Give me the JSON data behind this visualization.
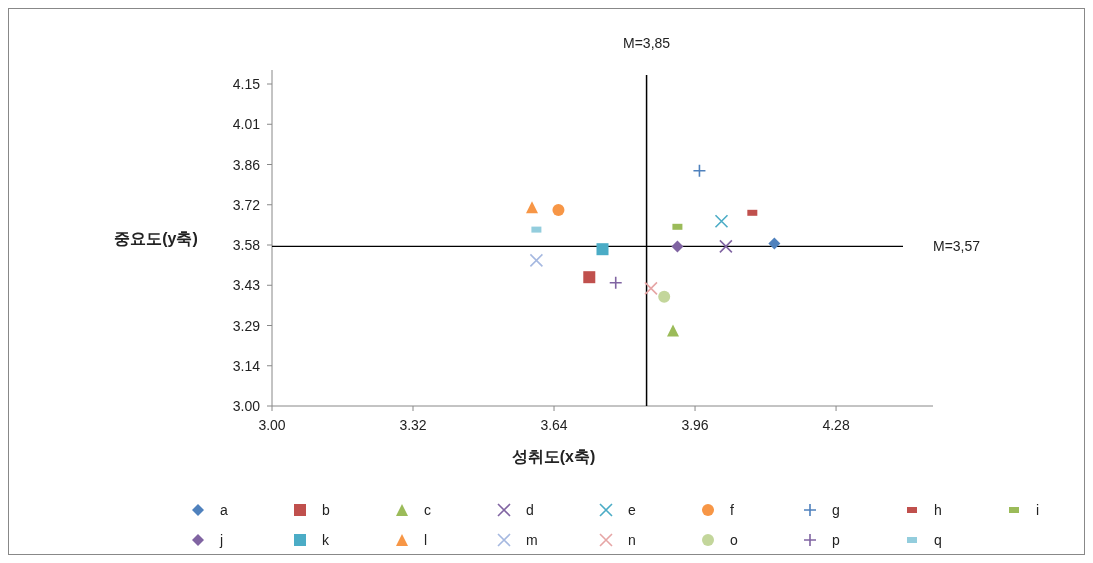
{
  "chart_data": {
    "type": "scatter",
    "xlabel": "성취도(x축)",
    "ylabel": "중요도(y축)",
    "xlim": [
      3,
      4.5
    ],
    "ylim": [
      3,
      4.2
    ],
    "xticks": [
      {
        "value": 3,
        "label": "3.00"
      },
      {
        "value": 3.32,
        "label": "3.32"
      },
      {
        "value": 3.64,
        "label": "3.64"
      },
      {
        "value": 3.96,
        "label": "3.96"
      },
      {
        "value": 4.28,
        "label": "4.28"
      }
    ],
    "yticks": [
      {
        "value": 3,
        "label": "3.00"
      },
      {
        "value": 3.14375,
        "label": "3.14"
      },
      {
        "value": 3.2875,
        "label": "3.29"
      },
      {
        "value": 3.43125,
        "label": "3.43"
      },
      {
        "value": 3.575,
        "label": "3.58"
      },
      {
        "value": 3.71875,
        "label": "3.72"
      },
      {
        "value": 3.8625,
        "label": "3.86"
      },
      {
        "value": 4.00625,
        "label": "4.01"
      },
      {
        "value": 4.15,
        "label": "4.15"
      }
    ],
    "grid": false,
    "legend": "bottom",
    "ref_lines": [
      {
        "axis": "x",
        "value": 3.85,
        "label": "M=3,85",
        "color": "#000000"
      },
      {
        "axis": "y",
        "value": 3.57,
        "label": "M=3,57",
        "color": "#000000"
      }
    ],
    "series": [
      {
        "name": "a",
        "color": "#4f81bd",
        "marker": "diamond",
        "x": [
          4.14
        ],
        "values": [
          3.58
        ]
      },
      {
        "name": "b",
        "color": "#c0504d",
        "marker": "square",
        "x": [
          3.72
        ],
        "values": [
          3.46
        ]
      },
      {
        "name": "c",
        "color": "#9bbb59",
        "marker": "triangle",
        "x": [
          3.91
        ],
        "values": [
          3.27
        ]
      },
      {
        "name": "d",
        "color": "#8064a2",
        "marker": "cross",
        "x": [
          4.03
        ],
        "values": [
          3.57
        ]
      },
      {
        "name": "e",
        "color": "#4bacc6",
        "marker": "cross",
        "x": [
          4.02
        ],
        "values": [
          3.66
        ]
      },
      {
        "name": "f",
        "color": "#f79646",
        "marker": "circle",
        "x": [
          3.65
        ],
        "values": [
          3.7
        ]
      },
      {
        "name": "g",
        "color": "#4f81bd",
        "marker": "plus",
        "x": [
          3.97
        ],
        "values": [
          3.84
        ]
      },
      {
        "name": "h",
        "color": "#c0504d",
        "x": [
          4.09
        ],
        "values": [
          3.69
        ]
      },
      {
        "name": "i",
        "color": "#9bbb59",
        "x": [
          3.92
        ],
        "values": [
          3.64
        ]
      },
      {
        "name": "j",
        "color": "#8064a2",
        "marker": "diamond",
        "x": [
          3.92
        ],
        "values": [
          3.57
        ]
      },
      {
        "name": "k",
        "color": "#4bacc6",
        "marker": "square",
        "x": [
          3.75
        ],
        "values": [
          3.56
        ]
      },
      {
        "name": "l",
        "color": "#f79646",
        "marker": "triangle",
        "x": [
          3.59
        ],
        "values": [
          3.71
        ]
      },
      {
        "name": "m",
        "color": "#a5b8e0",
        "marker": "cross",
        "x": [
          3.6
        ],
        "values": [
          3.52
        ]
      },
      {
        "name": "n",
        "color": "#e6a5a5",
        "marker": "cross",
        "x": [
          3.86
        ],
        "values": [
          3.42
        ]
      },
      {
        "name": "o",
        "color": "#c3d69b",
        "marker": "circle",
        "x": [
          3.89
        ],
        "values": [
          3.39
        ]
      },
      {
        "name": "p",
        "color": "#8064a2",
        "marker": "plus",
        "x": [
          3.78
        ],
        "values": [
          3.44
        ]
      },
      {
        "name": "q",
        "color": "#93cddd",
        "x": [
          3.6
        ],
        "values": [
          3.63
        ]
      }
    ]
  }
}
